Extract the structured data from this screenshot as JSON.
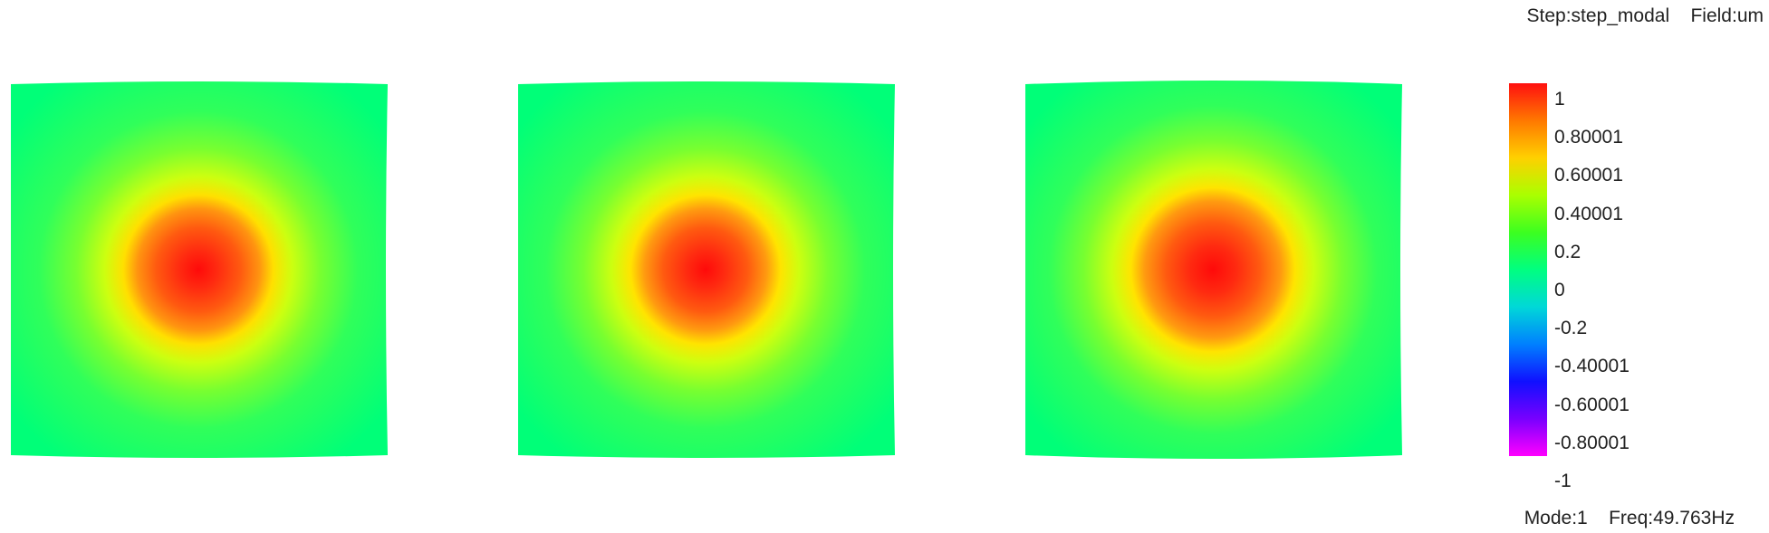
{
  "header": {
    "step_label": "Step:step_modal",
    "field_label": "Field:um"
  },
  "footer": {
    "mode_label": "Mode:1",
    "freq_label": "Freq:49.763Hz"
  },
  "legend": {
    "ticks": [
      "1",
      "0.80001",
      "0.60001",
      "0.40001",
      "0.2",
      "0",
      "-0.2",
      "-0.40001",
      "-0.60001",
      "-0.80001",
      "-1"
    ],
    "colors": [
      "#ff1010",
      "#ff7800",
      "#ffd000",
      "#aaff00",
      "#3cff20",
      "#00ff80",
      "#00d8d8",
      "#0080ff",
      "#1010ff",
      "#7800ff",
      "#ff00ff"
    ]
  },
  "panels": [
    {
      "name": "panel-view-1",
      "max_value": 1
    },
    {
      "name": "panel-view-2",
      "max_value": 1
    },
    {
      "name": "panel-view-3",
      "max_value": 1
    }
  ]
}
